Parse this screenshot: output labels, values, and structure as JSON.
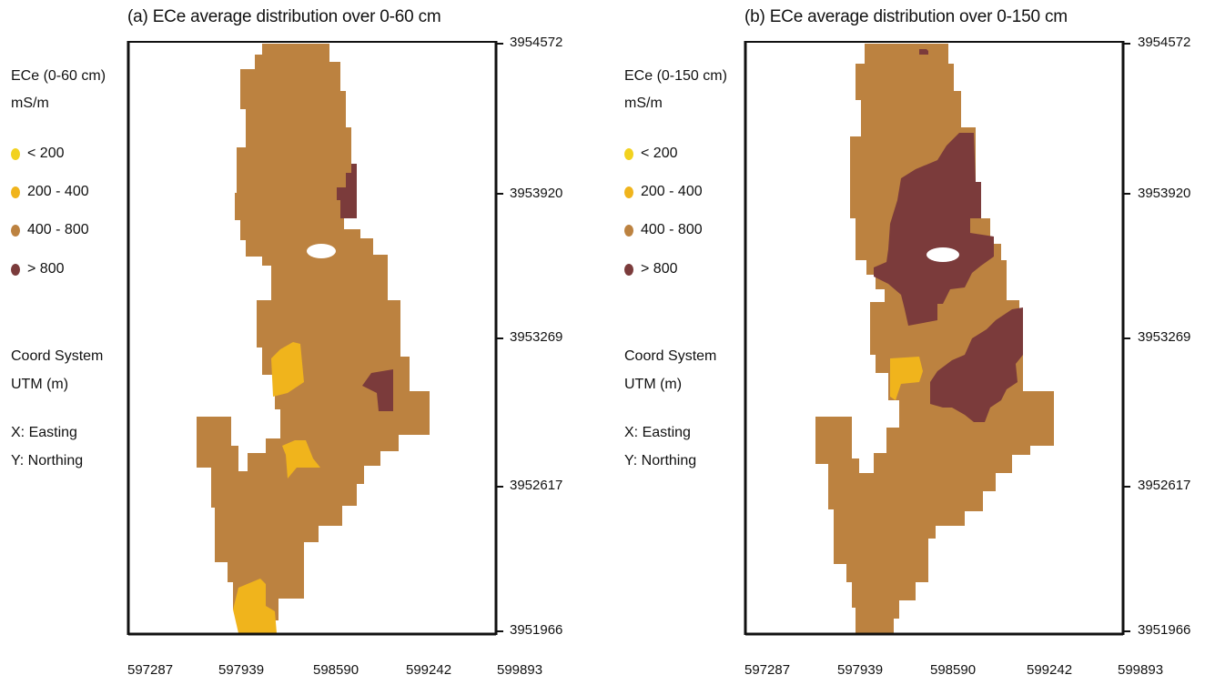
{
  "panels": [
    {
      "title": "(a) ECe average distribution over 0-60 cm",
      "legend_title": "ECe (0-60 cm)",
      "legend_unit": "mS/m",
      "classes": [
        {
          "label": "< 200",
          "color": "#f2d21f"
        },
        {
          "label": "200 - 400",
          "color": "#f0b41c"
        },
        {
          "label": "400 - 800",
          "color": "#bc8240"
        },
        {
          "label": "> 800",
          "color": "#7b3b3b"
        }
      ],
      "coord_lines": [
        "Coord System",
        "UTM (m)",
        "X: Easting",
        "Y: Northing"
      ],
      "y_ticks": [
        "3954572",
        "3953920",
        "3953269",
        "3952617",
        "3951966"
      ],
      "x_ticks": [
        "597287",
        "597939",
        "598590",
        "599242",
        "599893"
      ]
    },
    {
      "title": "(b) ECe average distribution over 0-150 cm",
      "legend_title": "ECe (0-150 cm)",
      "legend_unit": "mS/m",
      "classes": [
        {
          "label": "< 200",
          "color": "#f2d21f"
        },
        {
          "label": "200 - 400",
          "color": "#f0b41c"
        },
        {
          "label": "400 - 800",
          "color": "#bc8240"
        },
        {
          "label": "> 800",
          "color": "#7b3b3b"
        }
      ],
      "coord_lines": [
        "Coord System",
        "UTM (m)",
        "X: Easting",
        "Y: Northing"
      ],
      "y_ticks": [
        "3954572",
        "3953920",
        "3953269",
        "3952617",
        "3951966"
      ],
      "x_ticks": [
        "597287",
        "597939",
        "598590",
        "599242",
        "599893"
      ]
    }
  ]
}
